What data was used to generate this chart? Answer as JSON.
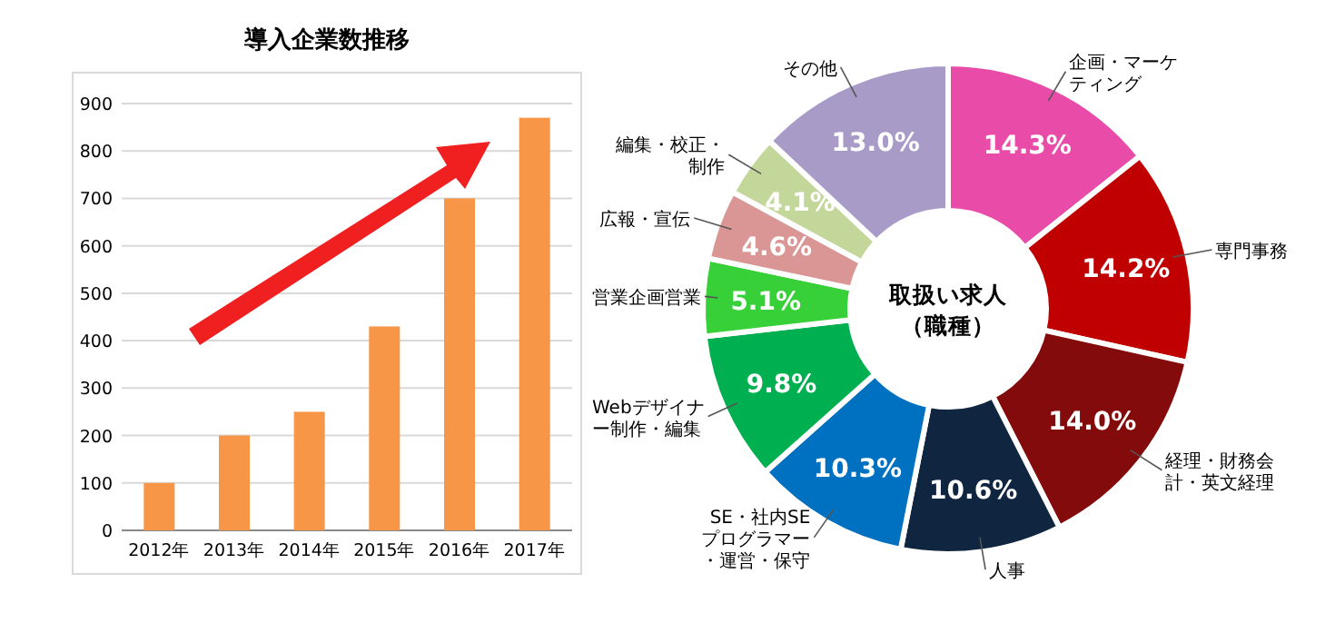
{
  "chart_data": [
    {
      "type": "bar",
      "title": "導入企業数推移",
      "categories": [
        "2012年",
        "2013年",
        "2014年",
        "2015年",
        "2016年",
        "2017年"
      ],
      "values": [
        100,
        200,
        250,
        430,
        700,
        870
      ],
      "color": "#f79646",
      "ylim": [
        0,
        900
      ],
      "yticks": [
        0,
        100,
        200,
        300,
        400,
        500,
        600,
        700,
        800,
        900
      ],
      "grid": "y"
    },
    {
      "type": "donut",
      "categories": [
        "企画・マーケティング",
        "専門事務",
        "経理・財務会計・英文経理",
        "人事",
        "SE・社内SEプログラマー・運営・保守",
        "Webデザイナー制作・編集",
        "営業企画営業",
        "広報・宣伝",
        "編集・校正・制作",
        "その他"
      ],
      "values": [
        14.3,
        14.2,
        14.0,
        10.6,
        10.3,
        9.8,
        5.1,
        4.6,
        4.1,
        13.0
      ],
      "value_labels": [
        "14.3%",
        "14.2%",
        "14.0%",
        "10.6%",
        "10.3%",
        "9.8%",
        "5.1%",
        "4.6%",
        "4.1%",
        "13.0%"
      ],
      "colors": [
        "#e84ca8",
        "#c00000",
        "#840b0b",
        "#10253f",
        "#0070c0",
        "#00b050",
        "#38d038",
        "#d99694",
        "#c4d79b",
        "#a99bc8"
      ],
      "annotations": [
        "取扱い求人（職種）"
      ]
    }
  ]
}
